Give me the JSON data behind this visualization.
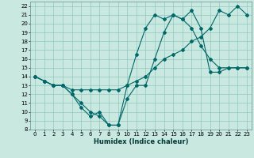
{
  "xlabel": "Humidex (Indice chaleur)",
  "background_color": "#c8e8e0",
  "grid_color": "#90c8c0",
  "line_color": "#006868",
  "xlim": [
    -0.5,
    23.5
  ],
  "ylim": [
    8,
    22.5
  ],
  "xticks": [
    0,
    1,
    2,
    3,
    4,
    5,
    6,
    7,
    8,
    9,
    10,
    11,
    12,
    13,
    14,
    15,
    16,
    17,
    18,
    19,
    20,
    21,
    22,
    23
  ],
  "yticks": [
    8,
    9,
    10,
    11,
    12,
    13,
    14,
    15,
    16,
    17,
    18,
    19,
    20,
    21,
    22
  ],
  "line1_x": [
    0,
    1,
    2,
    3,
    4,
    5,
    6,
    7,
    8,
    9,
    10,
    11,
    12,
    13,
    14,
    15,
    16,
    17,
    18,
    19,
    20,
    21,
    22,
    23
  ],
  "line1_y": [
    14,
    13.5,
    13,
    13,
    12,
    10.5,
    9.5,
    10,
    8.5,
    8.5,
    11.5,
    13,
    13,
    16,
    19,
    21,
    20.5,
    19.5,
    17.5,
    16,
    15,
    15,
    15,
    15
  ],
  "line2_x": [
    0,
    1,
    2,
    3,
    4,
    5,
    6,
    7,
    8,
    9,
    10,
    11,
    12,
    13,
    14,
    15,
    16,
    17,
    18,
    19,
    20,
    21,
    22,
    23
  ],
  "line2_y": [
    14,
    13.5,
    13,
    13,
    12.5,
    12.5,
    12.5,
    12.5,
    12.5,
    12.5,
    13,
    13.5,
    14,
    15,
    16,
    16.5,
    17,
    18,
    18.5,
    19.5,
    21.5,
    21,
    22,
    21
  ],
  "line3_x": [
    0,
    1,
    2,
    3,
    4,
    5,
    6,
    7,
    8,
    9,
    10,
    11,
    12,
    13,
    14,
    15,
    16,
    17,
    18,
    19,
    20,
    21,
    22,
    23
  ],
  "line3_y": [
    14,
    13.5,
    13,
    13,
    12,
    11,
    10,
    9.5,
    8.5,
    8.5,
    13,
    16.5,
    19.5,
    21,
    20.5,
    21,
    20.5,
    21.5,
    19.5,
    14.5,
    14.5,
    15,
    15,
    15
  ]
}
